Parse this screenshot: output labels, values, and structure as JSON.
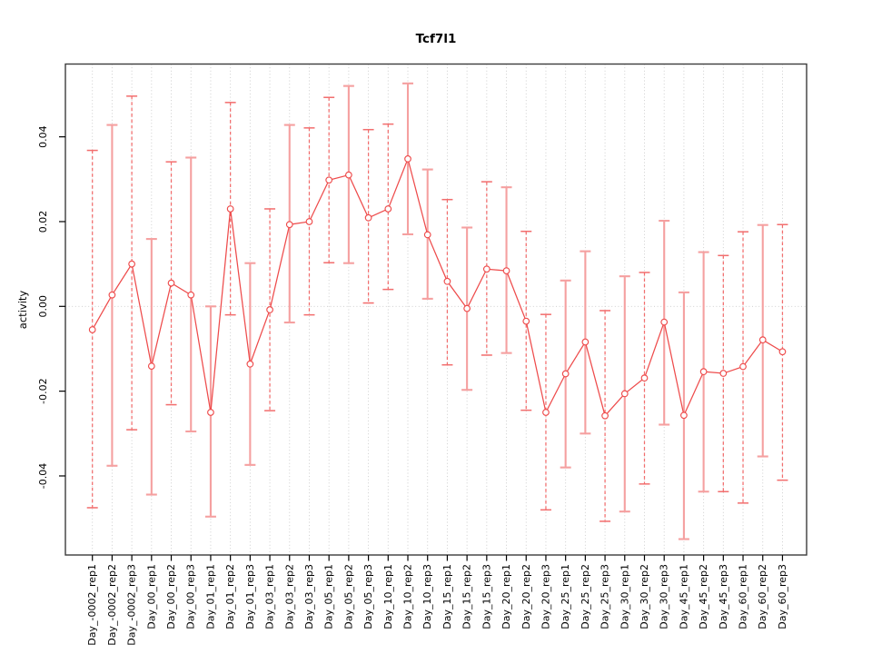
{
  "window": {
    "background": "#ffffff"
  },
  "chart_data": {
    "type": "scatter",
    "subtype": "points-with-error-bars",
    "title": "Tcf7l1",
    "xlabel": "",
    "ylabel": "activity",
    "categories": [
      "Day_-0002_rep1",
      "Day_-0002_rep2",
      "Day_-0002_rep3",
      "Day_00_rep1",
      "Day_00_rep2",
      "Day_00_rep3",
      "Day_01_rep1",
      "Day_01_rep2",
      "Day_01_rep3",
      "Day_03_rep1",
      "Day_03_rep2",
      "Day_03_rep3",
      "Day_05_rep1",
      "Day_05_rep2",
      "Day_05_rep3",
      "Day_10_rep1",
      "Day_10_rep2",
      "Day_10_rep3",
      "Day_15_rep1",
      "Day_15_rep2",
      "Day_15_rep3",
      "Day_20_rep1",
      "Day_20_rep2",
      "Day_20_rep3",
      "Day_25_rep1",
      "Day_25_rep2",
      "Day_25_rep3",
      "Day_30_rep1",
      "Day_30_rep2",
      "Day_30_rep3",
      "Day_45_rep1",
      "Day_45_rep2",
      "Day_45_rep3",
      "Day_60_rep1",
      "Day_60_rep2",
      "Day_60_rep3"
    ],
    "values": [
      -0.0055,
      0.0027,
      0.01,
      -0.0141,
      0.0055,
      0.0027,
      -0.025,
      0.023,
      -0.0136,
      -0.0008,
      0.0193,
      0.02,
      0.0298,
      0.031,
      0.0209,
      0.023,
      0.0348,
      0.0169,
      0.0059,
      -0.0005,
      0.0088,
      0.0084,
      -0.0035,
      -0.025,
      -0.0159,
      -0.0084,
      -0.0258,
      -0.0206,
      -0.0169,
      -0.0037,
      -0.0257,
      -0.0154,
      -0.0158,
      -0.0142,
      -0.0079,
      -0.0107
    ],
    "error_upper": [
      0.0368,
      0.0428,
      0.0496,
      0.0159,
      0.0341,
      0.0351,
      0.0,
      0.0481,
      0.0102,
      0.023,
      0.0428,
      0.0421,
      0.0493,
      0.052,
      0.0417,
      0.043,
      0.0526,
      0.0323,
      0.0252,
      0.0186,
      0.0294,
      0.0281,
      0.0177,
      -0.0019,
      0.0061,
      0.013,
      -0.001,
      0.0071,
      0.008,
      0.0202,
      0.0033,
      0.0128,
      0.012,
      0.0176,
      0.0192,
      0.0193
    ],
    "error_lower": [
      -0.0475,
      -0.0376,
      -0.0291,
      -0.0444,
      -0.0232,
      -0.0295,
      -0.0496,
      -0.002,
      -0.0374,
      -0.0246,
      -0.0038,
      -0.002,
      0.0103,
      0.0102,
      0.0008,
      0.004,
      0.017,
      0.0018,
      -0.0138,
      -0.0197,
      -0.0115,
      -0.011,
      -0.0245,
      -0.048,
      -0.038,
      -0.03,
      -0.0507,
      -0.0484,
      -0.0419,
      -0.0279,
      -0.0549,
      -0.0437,
      -0.0437,
      -0.0464,
      -0.0354,
      -0.041
    ],
    "bar_styles": [
      "dashed",
      "solid",
      "dashed",
      "solid",
      "dashed",
      "solid",
      "solid",
      "dashed",
      "solid",
      "dashed",
      "solid",
      "dashed",
      "dashed",
      "solid",
      "dashed",
      "dashed",
      "solid",
      "solid",
      "dashed",
      "solid",
      "dashed",
      "solid",
      "dashed",
      "dashed",
      "solid",
      "solid",
      "dashed",
      "solid",
      "dashed",
      "solid",
      "solid",
      "solid",
      "dashed",
      "dashed",
      "solid",
      "dashed"
    ],
    "yticks": [
      -0.04,
      -0.02,
      0,
      0.02,
      0.04
    ],
    "ytick_labels": [
      "-0.04",
      "-0.02",
      "0.00",
      "0.02",
      "0.04"
    ],
    "ylim": [
      -0.0587,
      0.0572
    ],
    "grid": "vertical-dotted-per-category, dotted-horizontal-zero-line",
    "legend": "none",
    "marker": "open-circle",
    "line_between_points": true
  },
  "colors": {
    "series_line": "#EE4B4B",
    "marker_stroke": "#EE4B4B",
    "marker_fill": "#ffffff",
    "errorbar_dashed": "#F26D6D",
    "errorbar_solid": "#F5A0A0",
    "grid": "#C9C9C9",
    "plot_border": "#3C3C3C",
    "axis_tick": "#000000",
    "text": "#000000"
  }
}
